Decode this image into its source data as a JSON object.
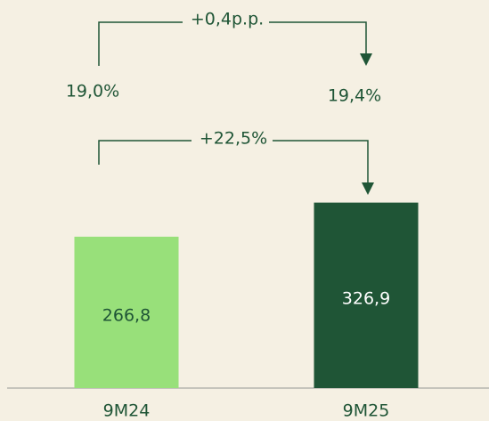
{
  "chart_data": {
    "type": "bar",
    "categories": [
      "9M24",
      "9M25"
    ],
    "values": [
      266.8,
      326.9
    ],
    "value_labels": [
      "266,8",
      "326,9"
    ],
    "colors": [
      "#98e07a",
      "#1f5536"
    ],
    "ylim": [
      0,
      684
    ],
    "margin": {
      "values": [
        19.0,
        19.4
      ],
      "value_labels": [
        "19,0%",
        "19,4%"
      ]
    },
    "annotations": [
      "+0,4p.p.",
      "+22,5%"
    ]
  }
}
